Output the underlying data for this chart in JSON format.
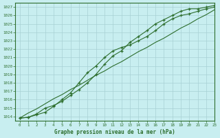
{
  "title": "Graphe pression niveau de la mer (hPa)",
  "bg_color": "#c8eef0",
  "grid_color": "#a8d0d4",
  "line_color": "#2d6e2d",
  "xlim": [
    -0.5,
    23
  ],
  "ylim": [
    1013.5,
    1027.5
  ],
  "xticks": [
    0,
    1,
    2,
    3,
    4,
    5,
    6,
    7,
    8,
    9,
    10,
    11,
    12,
    13,
    14,
    15,
    16,
    17,
    18,
    19,
    20,
    21,
    22,
    23
  ],
  "yticks": [
    1014,
    1015,
    1016,
    1017,
    1018,
    1019,
    1020,
    1021,
    1022,
    1023,
    1024,
    1025,
    1026,
    1027
  ],
  "line_straight": [
    1013.8,
    1014.4,
    1014.9,
    1015.5,
    1016.1,
    1016.6,
    1017.2,
    1017.7,
    1018.3,
    1018.9,
    1019.4,
    1020.0,
    1020.5,
    1021.1,
    1021.7,
    1022.2,
    1022.8,
    1023.3,
    1023.9,
    1024.5,
    1025.0,
    1025.6,
    1026.1,
    1026.7
  ],
  "line_upper": [
    1013.8,
    1013.9,
    1014.2,
    1014.5,
    1015.2,
    1016.0,
    1016.8,
    1018.0,
    1019.2,
    1020.0,
    1021.0,
    1021.8,
    1022.2,
    1022.5,
    1023.0,
    1023.5,
    1024.2,
    1025.0,
    1025.6,
    1026.0,
    1026.2,
    1026.5,
    1026.8,
    1027.0
  ],
  "line_lower": [
    1013.8,
    1013.9,
    1014.3,
    1015.0,
    1015.3,
    1015.8,
    1016.5,
    1017.2,
    1018.0,
    1019.0,
    1020.2,
    1021.2,
    1021.8,
    1022.8,
    1023.5,
    1024.2,
    1025.0,
    1025.5,
    1026.0,
    1026.5,
    1026.8,
    1026.8,
    1027.0,
    1027.2
  ]
}
